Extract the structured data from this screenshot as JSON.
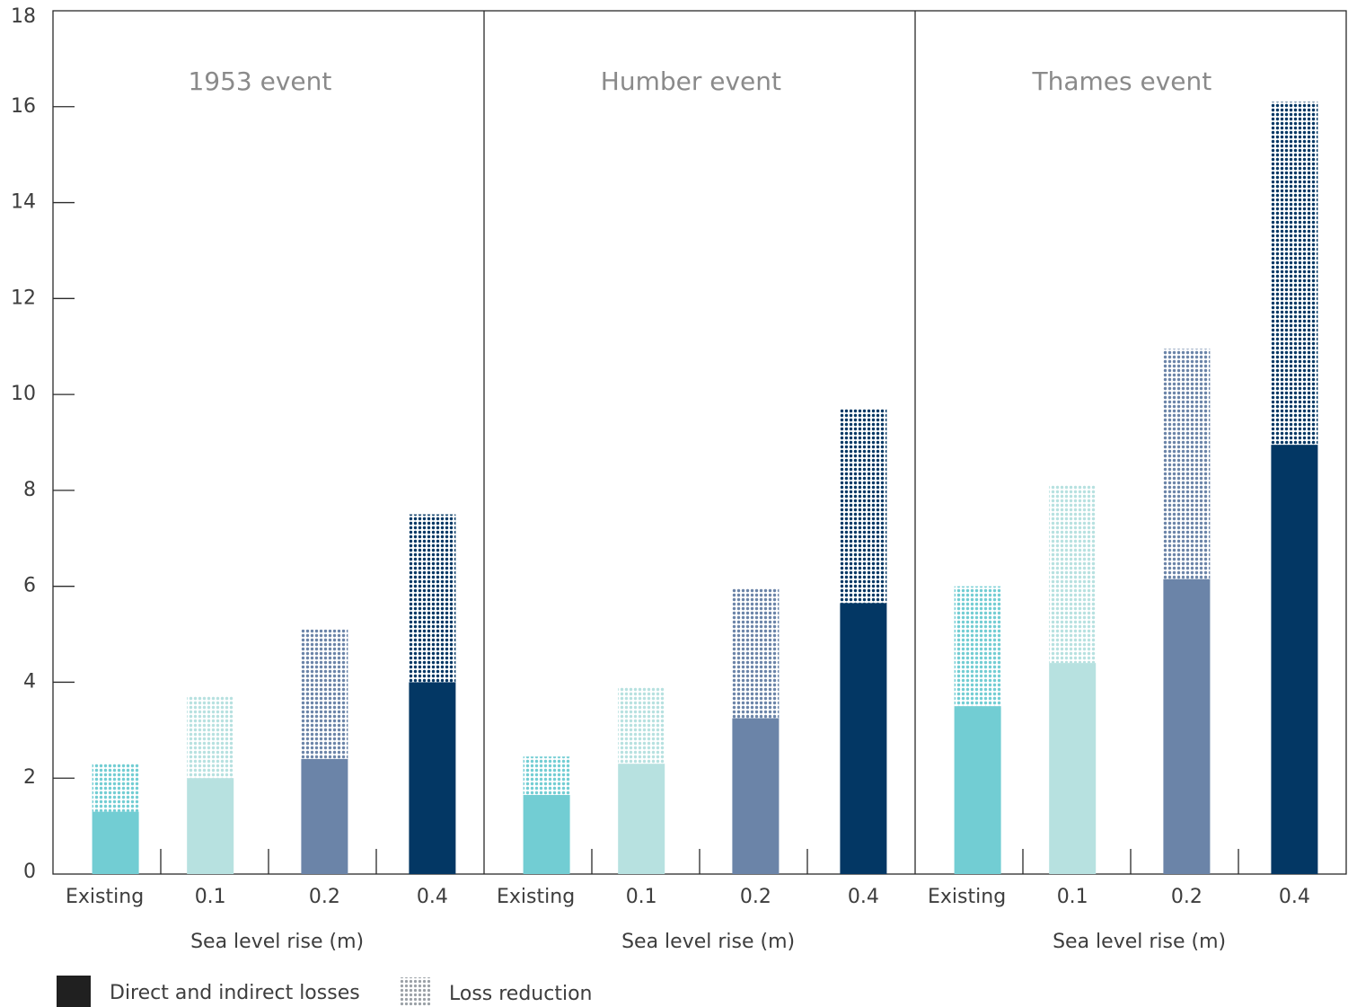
{
  "chart_data": {
    "type": "bar",
    "stacked": true,
    "ylim": [
      0,
      18
    ],
    "yticks": [
      0,
      2,
      4,
      6,
      8,
      10,
      12,
      14,
      16,
      18
    ],
    "categories": [
      "Existing",
      "0.1",
      "0.2",
      "0.4"
    ],
    "category_colors": [
      "#72cdd3",
      "#b7e1e0",
      "#6b84a8",
      "#033764"
    ],
    "xlabel": "Sea level rise (m)",
    "panels": [
      {
        "title": "1953 event",
        "series": [
          {
            "name": "Direct and indirect losses",
            "values": [
              1.3,
              2.0,
              2.4,
              4.0
            ]
          },
          {
            "name": "Loss reduction",
            "values": [
              1.0,
              1.7,
              2.7,
              3.5
            ]
          }
        ]
      },
      {
        "title": "Humber event",
        "series": [
          {
            "name": "Direct and indirect losses",
            "values": [
              1.65,
              2.3,
              3.25,
              5.65
            ]
          },
          {
            "name": "Loss reduction",
            "values": [
              0.8,
              1.6,
              2.7,
              4.05
            ]
          }
        ]
      },
      {
        "title": "Thames event",
        "series": [
          {
            "name": "Direct and indirect losses",
            "values": [
              3.5,
              4.4,
              6.15,
              8.95
            ]
          },
          {
            "name": "Loss reduction",
            "values": [
              2.5,
              3.7,
              4.8,
              7.15
            ]
          }
        ]
      }
    ],
    "legend": {
      "placement": "bottom-left",
      "items": [
        {
          "label": "Direct and indirect losses",
          "style": "solid",
          "color": "#202020"
        },
        {
          "label": "Loss reduction",
          "style": "dotted",
          "color": "#9aa0a6"
        }
      ]
    },
    "grid": false
  }
}
